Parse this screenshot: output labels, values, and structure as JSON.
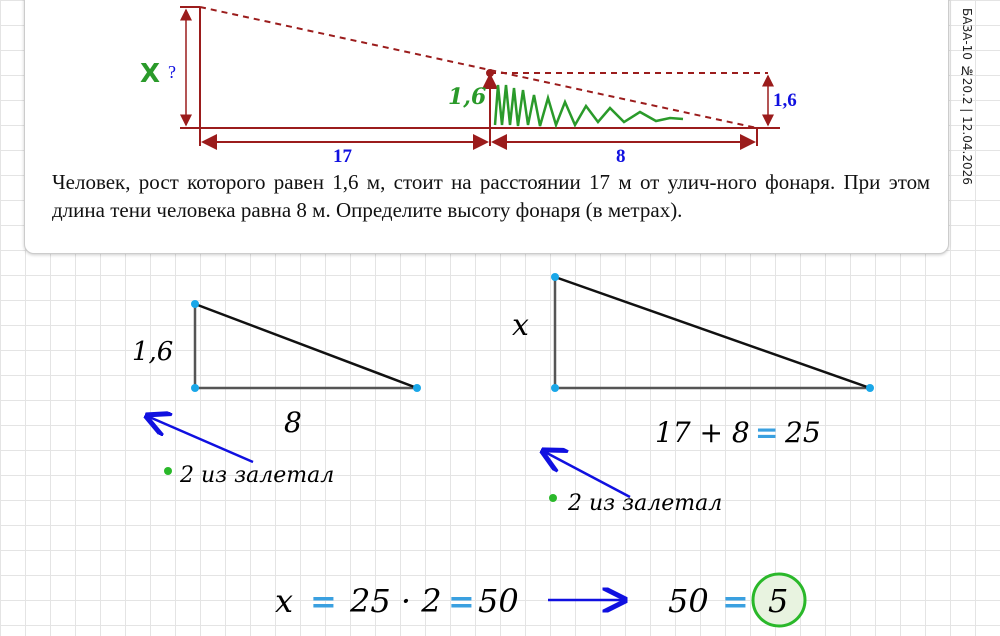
{
  "sidebar_label": "БАЗА-10 №20.2 | 12.04.2026",
  "figure": {
    "unknown_mark": "X",
    "unknown_label": "?",
    "height_label": "1,6",
    "handwritten_height": "1,6",
    "distance_label": "17",
    "shadow_label": "8"
  },
  "problem_text": "Человек, рост которого равен 1,6 м, стоит на расстоянии 17 м от улич-ного фонаря. При этом длина тени человека равна 8 м. Определите высоту фонаря (в метрах).",
  "solution": {
    "small_triangle": {
      "height": "1,6",
      "base": "8",
      "note": "2 из залетал"
    },
    "large_triangle": {
      "height": "x",
      "base_sum": "17 + 8",
      "equals": "=",
      "base": "25",
      "note": "2 из залетал"
    },
    "final": {
      "lhs": "x",
      "eq1": "=",
      "expr": "25 · 2",
      "eq2": "=",
      "result": "50",
      "arrow": "→",
      "result2": "50",
      "eq3": "=",
      "answer": "5"
    }
  },
  "colors": {
    "figure": "#9b1c1c",
    "blue": "#1010e0",
    "green": "#2a9a2a",
    "accent_equals": "#3aa0e0",
    "dot": "#1aa7e8"
  }
}
